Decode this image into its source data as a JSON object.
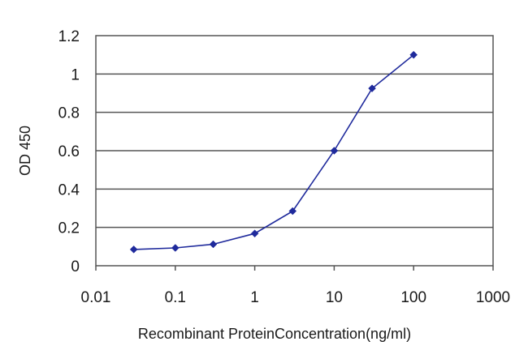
{
  "chart_data": {
    "type": "line",
    "title": "",
    "xlabel": "Recombinant ProteinConcentration(ng/ml)",
    "ylabel": "OD 450",
    "x_scale": "log",
    "xlim": [
      0.01,
      1000
    ],
    "ylim": [
      0,
      1.2
    ],
    "x_ticks": [
      0.01,
      0.1,
      1,
      10,
      100,
      1000
    ],
    "x_tick_labels": [
      "0.01",
      "0.1",
      "1",
      "10",
      "100",
      "1000"
    ],
    "y_ticks": [
      0,
      0.2,
      0.4,
      0.6,
      0.8,
      1,
      1.2
    ],
    "y_tick_labels": [
      "0",
      "0.2",
      "0.4",
      "0.6",
      "0.8",
      "1",
      "1.2"
    ],
    "grid": "horizontal",
    "legend": "none",
    "series": [
      {
        "color": "#1f2a9c",
        "marker": "diamond",
        "x": [
          0.03,
          0.1,
          0.3,
          1,
          3,
          10,
          30,
          100
        ],
        "y": [
          0.085,
          0.093,
          0.112,
          0.168,
          0.285,
          0.6,
          0.925,
          1.1
        ]
      }
    ]
  }
}
